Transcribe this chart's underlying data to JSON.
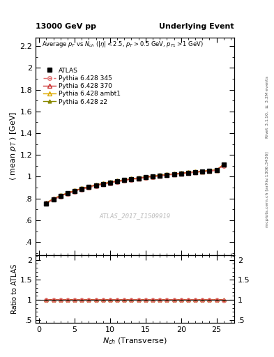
{
  "title_left": "13000 GeV pp",
  "title_right": "Underlying Event",
  "subtitle": "Average $p_T$ vs $N_{ch}$ ($|\\eta| < 2.5$, $p_T > 0.5$ GeV, $p_{T1} > 1$ GeV)",
  "ylabel_main": "$\\langle$ mean $p_T$ $\\rangle$ [GeV]",
  "ylabel_ratio": "Ratio to ATLAS",
  "xlabel": "$N_{ch}$ (Transverse)",
  "ylim_main": [
    0.28,
    2.28
  ],
  "ylim_ratio": [
    0.42,
    2.12
  ],
  "yticks_main": [
    0.4,
    0.6,
    0.8,
    1.0,
    1.2,
    1.4,
    1.6,
    1.8,
    2.0,
    2.2
  ],
  "yticks_ratio": [
    0.5,
    1.0,
    1.5,
    2.0
  ],
  "xlim": [
    -0.5,
    27.5
  ],
  "watermark": "ATLAS_2017_I1509919",
  "right_label_top": "Rivet 3.1.10, $\\geq$ 3.2M events",
  "right_label_bottom": "mcplots.cern.ch [arXiv:1306.3436]",
  "atlas_nch": [
    1,
    2,
    3,
    4,
    5,
    6,
    7,
    8,
    9,
    10,
    11,
    12,
    13,
    14,
    15,
    16,
    17,
    18,
    19,
    20,
    21,
    22,
    23,
    24,
    25,
    26
  ],
  "atlas_vals": [
    0.755,
    0.793,
    0.822,
    0.848,
    0.87,
    0.889,
    0.906,
    0.921,
    0.934,
    0.946,
    0.958,
    0.968,
    0.977,
    0.986,
    0.994,
    1.002,
    1.009,
    1.016,
    1.023,
    1.03,
    1.036,
    1.042,
    1.048,
    1.055,
    1.061,
    1.11
  ],
  "p345_nch": [
    1,
    2,
    3,
    4,
    5,
    6,
    7,
    8,
    9,
    10,
    11,
    12,
    13,
    14,
    15,
    16,
    17,
    18,
    19,
    20,
    21,
    22,
    23,
    24,
    25,
    26
  ],
  "p345_vals": [
    0.752,
    0.79,
    0.818,
    0.843,
    0.865,
    0.884,
    0.901,
    0.916,
    0.93,
    0.942,
    0.954,
    0.964,
    0.974,
    0.983,
    0.991,
    0.999,
    1.007,
    1.014,
    1.021,
    1.027,
    1.034,
    1.04,
    1.046,
    1.052,
    1.058,
    1.1
  ],
  "p370_nch": [
    1,
    2,
    3,
    4,
    5,
    6,
    7,
    8,
    9,
    10,
    11,
    12,
    13,
    14,
    15,
    16,
    17,
    18,
    19,
    20,
    21,
    22,
    23,
    24,
    25,
    26
  ],
  "p370_vals": [
    0.757,
    0.795,
    0.824,
    0.849,
    0.871,
    0.89,
    0.907,
    0.922,
    0.935,
    0.947,
    0.959,
    0.969,
    0.978,
    0.987,
    0.995,
    1.003,
    1.01,
    1.017,
    1.024,
    1.031,
    1.037,
    1.043,
    1.049,
    1.055,
    1.061,
    1.112
  ],
  "pambt1_nch": [
    1,
    2,
    3,
    4,
    5,
    6,
    7,
    8,
    9,
    10,
    11,
    12,
    13,
    14,
    15,
    16,
    17,
    18,
    19,
    20,
    21,
    22,
    23,
    24,
    25,
    26
  ],
  "pambt1_vals": [
    0.76,
    0.798,
    0.827,
    0.852,
    0.874,
    0.893,
    0.91,
    0.925,
    0.938,
    0.95,
    0.962,
    0.972,
    0.981,
    0.99,
    0.998,
    1.006,
    1.013,
    1.02,
    1.027,
    1.033,
    1.039,
    1.045,
    1.051,
    1.057,
    1.063,
    1.113
  ],
  "pz2_nch": [
    1,
    2,
    3,
    4,
    5,
    6,
    7,
    8,
    9,
    10,
    11,
    12,
    13,
    14,
    15,
    16,
    17,
    18,
    19,
    20,
    21,
    22,
    23,
    24,
    25,
    26
  ],
  "pz2_vals": [
    0.758,
    0.796,
    0.825,
    0.85,
    0.872,
    0.891,
    0.908,
    0.923,
    0.936,
    0.948,
    0.96,
    0.97,
    0.979,
    0.988,
    0.996,
    1.004,
    1.011,
    1.018,
    1.025,
    1.031,
    1.037,
    1.043,
    1.049,
    1.055,
    1.061,
    1.111
  ],
  "atlas_color": "#000000",
  "p345_color": "#e07070",
  "p370_color": "#cc3333",
  "pambt1_color": "#ddaa00",
  "pz2_color": "#888800",
  "legend_labels": [
    "ATLAS",
    "Pythia 6.428 345",
    "Pythia 6.428 370",
    "Pythia 6.428 ambt1",
    "Pythia 6.428 z2"
  ]
}
